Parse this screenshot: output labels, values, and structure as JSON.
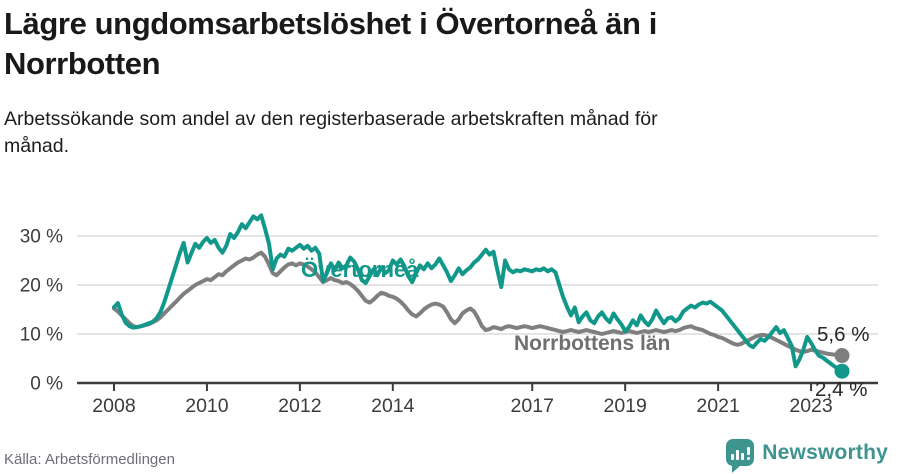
{
  "header": {
    "title_line1": "Lägre ungdomsarbetslöshet i Övertorneå än i",
    "title_line2": "Norrbotten",
    "subtitle_line1": "Arbetssökande som andel av den registerbaserade arbetskraften månad för",
    "subtitle_line2": "månad."
  },
  "footer": {
    "source": "Källa: Arbetsförmedlingen",
    "brand": "Newsworthy",
    "brand_color": "#3E948E"
  },
  "chart_data": {
    "type": "line",
    "unit": "%",
    "frequency": "monthly",
    "x_start": "2008-01",
    "x_end": "2023-09",
    "ylim": [
      0,
      35
    ],
    "grid": "horizontal",
    "axis_color": "#3C3C3C",
    "gridline_color": "#DCDCDC",
    "x_tick_labels": [
      "2008",
      "2010",
      "2012",
      "2014",
      "2017",
      "2019",
      "2021",
      "2023"
    ],
    "y_ticks": [
      {
        "value": 0,
        "label": "0 %"
      },
      {
        "value": 10,
        "label": "10 %"
      },
      {
        "value": 20,
        "label": "20 %"
      },
      {
        "value": 30,
        "label": "30 %"
      }
    ],
    "series": [
      {
        "name": "Norrbottens län",
        "color": "#7F7F7F",
        "label_color": "#6F6F6F",
        "end_label": "5,6 %",
        "last_value": 5.6,
        "values": [
          15.2,
          14.6,
          13.8,
          13.0,
          12.2,
          11.6,
          11.4,
          11.6,
          11.8,
          12.0,
          12.4,
          12.8,
          13.4,
          14.2,
          15.0,
          15.8,
          16.6,
          17.4,
          18.2,
          18.8,
          19.4,
          20.0,
          20.4,
          20.8,
          21.2,
          21.0,
          21.6,
          22.2,
          22.0,
          22.8,
          23.4,
          24.0,
          24.6,
          25.0,
          25.4,
          25.2,
          25.6,
          26.2,
          26.6,
          25.8,
          24.2,
          22.4,
          22.0,
          22.8,
          23.6,
          24.2,
          24.4,
          24.0,
          24.4,
          24.2,
          23.8,
          23.2,
          22.6,
          21.6,
          20.6,
          21.0,
          21.4,
          21.0,
          20.8,
          20.4,
          20.6,
          20.2,
          19.6,
          18.8,
          17.8,
          16.8,
          16.4,
          17.0,
          17.8,
          18.4,
          18.2,
          17.8,
          17.6,
          17.2,
          16.6,
          15.8,
          14.8,
          14.0,
          13.6,
          14.2,
          15.0,
          15.6,
          16.0,
          16.2,
          16.0,
          15.6,
          14.4,
          13.0,
          12.2,
          13.0,
          14.2,
          14.8,
          15.2,
          14.6,
          13.2,
          11.6,
          10.8,
          11.0,
          11.4,
          11.2,
          11.0,
          11.4,
          11.6,
          11.4,
          11.2,
          11.4,
          11.6,
          11.4,
          11.2,
          11.4,
          11.6,
          11.4,
          11.2,
          11.0,
          10.8,
          10.6,
          10.4,
          10.6,
          10.8,
          10.6,
          10.4,
          10.6,
          10.8,
          10.6,
          10.4,
          10.2,
          10.0,
          10.2,
          10.4,
          10.6,
          10.4,
          10.2,
          10.4,
          10.6,
          10.4,
          10.2,
          10.4,
          10.6,
          10.4,
          10.6,
          10.8,
          10.6,
          10.4,
          10.6,
          10.8,
          10.6,
          10.8,
          11.2,
          11.4,
          11.6,
          11.2,
          11.0,
          10.8,
          10.4,
          10.0,
          9.8,
          9.4,
          9.2,
          8.8,
          8.4,
          8.0,
          7.8,
          8.0,
          8.4,
          8.8,
          9.2,
          9.6,
          9.8,
          9.8,
          9.6,
          9.2,
          8.8,
          8.4,
          8.0,
          7.6,
          7.2,
          6.8,
          6.5,
          6.3,
          6.5,
          6.8,
          6.6,
          6.4,
          6.2,
          6.0,
          5.9,
          5.8,
          5.7,
          5.6
        ]
      },
      {
        "name": "Övertorneå",
        "color": "#12988B",
        "label_color": "#12988B",
        "end_label": "2,4 %",
        "last_value": 2.4,
        "values": [
          15.5,
          16.3,
          14.0,
          12.3,
          11.6,
          11.3,
          11.4,
          11.6,
          11.9,
          12.2,
          12.5,
          13.2,
          14.5,
          16.5,
          19.0,
          21.5,
          24.0,
          26.5,
          28.6,
          24.6,
          26.5,
          28.4,
          27.6,
          28.8,
          29.6,
          28.6,
          29.2,
          27.6,
          26.6,
          28.0,
          30.4,
          29.6,
          30.8,
          32.4,
          31.6,
          32.8,
          34.0,
          33.4,
          34.2,
          31.5,
          28.5,
          23.2,
          25.4,
          26.2,
          25.8,
          27.4,
          27.0,
          27.6,
          28.2,
          27.4,
          28.0,
          27.0,
          27.6,
          26.4,
          20.8,
          22.5,
          24.4,
          23.0,
          24.6,
          23.4,
          24.0,
          25.6,
          24.8,
          23.2,
          21.0,
          20.4,
          21.8,
          23.2,
          22.0,
          23.6,
          22.4,
          23.0,
          25.0,
          24.2,
          25.2,
          23.8,
          21.8,
          20.6,
          22.4,
          24.0,
          23.2,
          24.4,
          23.4,
          24.2,
          25.4,
          24.0,
          22.6,
          20.8,
          22.0,
          23.4,
          22.2,
          23.0,
          23.6,
          24.6,
          25.2,
          26.2,
          27.2,
          26.2,
          26.8,
          23.0,
          19.6,
          25.0,
          23.2,
          22.6,
          23.0,
          22.8,
          23.2,
          23.0,
          22.8,
          23.2,
          23.0,
          23.4,
          22.8,
          23.2,
          22.6,
          20.0,
          17.5,
          15.5,
          13.8,
          15.4,
          12.4,
          13.6,
          14.4,
          12.8,
          12.2,
          13.6,
          14.4,
          13.2,
          12.4,
          14.2,
          13.0,
          12.0,
          10.6,
          11.4,
          12.8,
          11.8,
          13.8,
          12.6,
          11.8,
          13.0,
          14.8,
          13.4,
          12.2,
          13.2,
          13.4,
          12.6,
          13.2,
          14.6,
          15.2,
          15.8,
          15.4,
          16.0,
          16.4,
          16.2,
          16.6,
          16.0,
          15.4,
          14.8,
          13.8,
          12.8,
          11.8,
          10.8,
          9.8,
          8.8,
          7.8,
          7.3,
          8.2,
          9.0,
          8.6,
          9.4,
          10.4,
          11.4,
          10.2,
          10.8,
          9.2,
          7.6,
          3.4,
          4.8,
          6.8,
          9.4,
          8.2,
          6.8,
          5.6,
          5.2,
          4.6,
          4.0,
          3.4,
          2.9,
          2.4
        ]
      }
    ]
  }
}
